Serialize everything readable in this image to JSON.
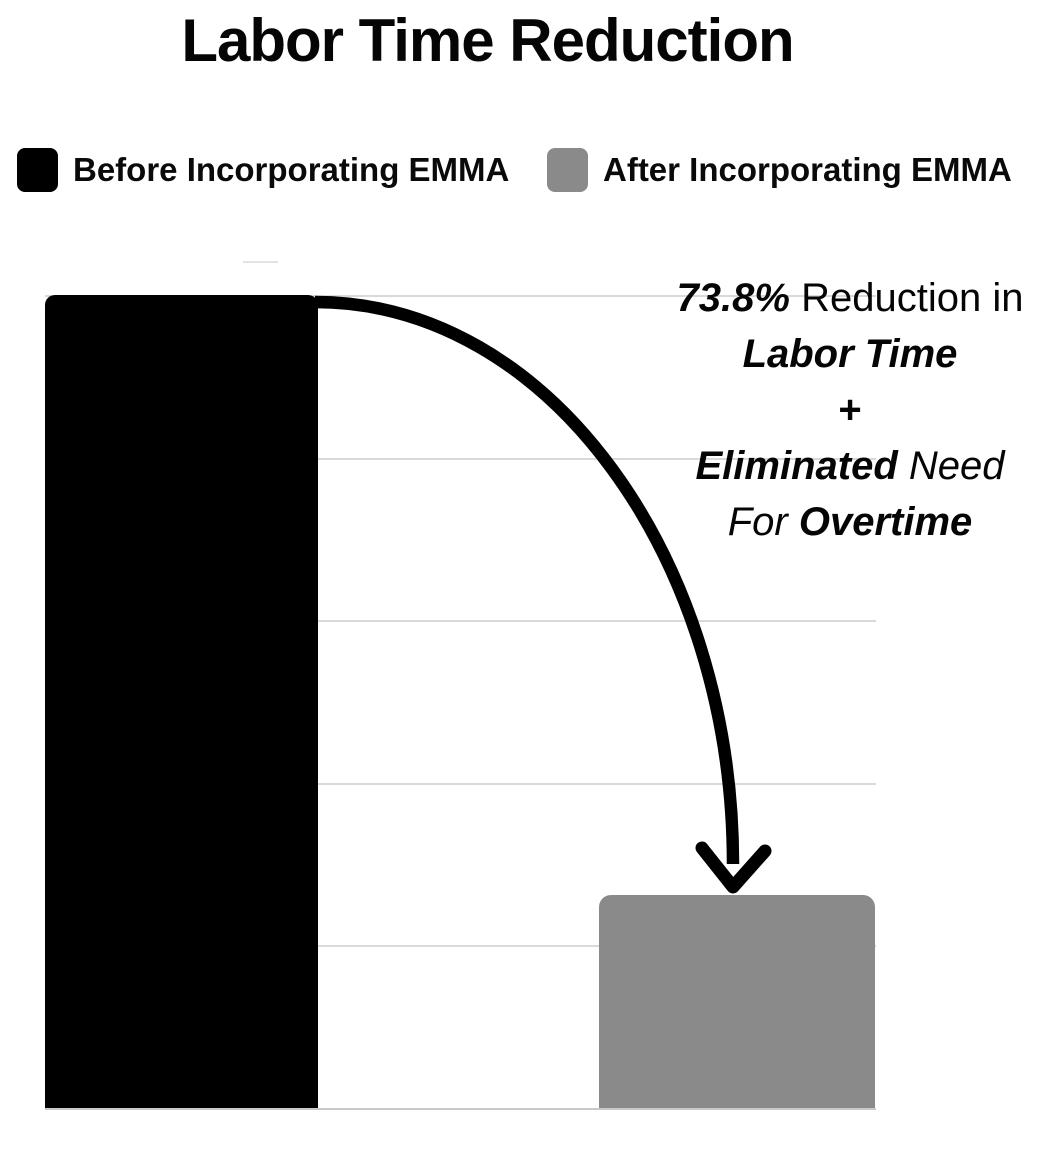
{
  "title": "Labor Time Reduction",
  "legend": {
    "items": [
      {
        "label": "Before Incorporating EMMA",
        "color": "#000000"
      },
      {
        "label": "After Incorporating EMMA",
        "color": "#8a8a8a"
      }
    ]
  },
  "annotation": {
    "line1": {
      "emph": "73.8%",
      "rest": " Reduction in"
    },
    "line2": "Labor Time",
    "line3": "+",
    "line4": {
      "emph": "Eliminated",
      "rest": " Need"
    },
    "line5": {
      "pre": "For ",
      "emph": "Overtime"
    }
  },
  "chart_data": {
    "type": "bar",
    "title": "Labor Time Reduction",
    "categories": [
      "Before Incorporating EMMA",
      "After Incorporating EMMA"
    ],
    "values": [
      100,
      26.2
    ],
    "series": [
      {
        "name": "Labor Time",
        "values": [
          100,
          26.2
        ]
      }
    ],
    "xlabel": "",
    "ylabel": "",
    "ylim": [
      0,
      100
    ],
    "gridline_values": [
      0,
      20,
      40,
      60,
      80,
      100
    ],
    "grid": true,
    "legend_position": "top-left",
    "bar_colors": [
      "#000000",
      "#8a8a8a"
    ],
    "annotation_text": "73.8% Reduction in Labor Time + Eliminated Need For Overtime",
    "arrow": "curved arrow from top of first bar down to top of second bar"
  },
  "colors": {
    "background": "#ffffff",
    "bar_before": "#000000",
    "bar_after": "#8a8a8a",
    "gridline": "#d9d9d9",
    "arrow": "#000000",
    "text": "#000000"
  }
}
